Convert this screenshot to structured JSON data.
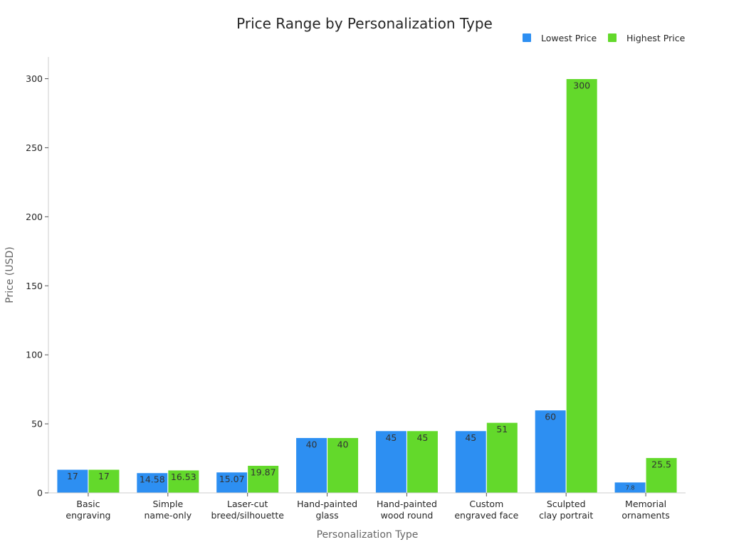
{
  "chart_data": {
    "type": "bar",
    "title": "Price Range by Personalization Type",
    "xlabel": "Personalization Type",
    "ylabel": "Price (USD)",
    "ylim": [
      0,
      315
    ],
    "yticks": [
      0,
      50,
      100,
      150,
      200,
      250,
      300
    ],
    "legend_position": "top-right",
    "categories": [
      [
        "Basic",
        "engraving"
      ],
      [
        "Simple",
        "name-only"
      ],
      [
        "Laser-cut",
        "breed/silhouette"
      ],
      [
        "Hand-painted",
        "glass"
      ],
      [
        "Hand-painted",
        "wood round"
      ],
      [
        "Custom",
        "engraved face"
      ],
      [
        "Sculpted",
        "clay portrait"
      ],
      [
        "Memorial",
        "ornaments"
      ]
    ],
    "series": [
      {
        "name": "Lowest Price",
        "color": "#2d8ff2",
        "values": [
          17,
          14.58,
          15.07,
          40,
          45,
          45,
          60,
          7.8
        ]
      },
      {
        "name": "Highest Price",
        "color": "#63d92b",
        "values": [
          17,
          16.53,
          19.87,
          40,
          45,
          51,
          300,
          25.5
        ]
      }
    ]
  }
}
